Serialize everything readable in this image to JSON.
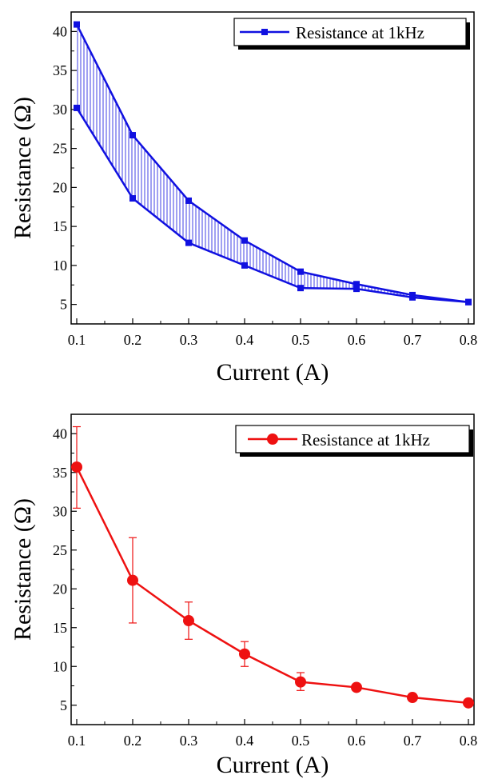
{
  "chart_data": [
    {
      "type": "line",
      "xlabel": "Current (A)",
      "ylabel": "Resistance (Ω)",
      "xlim": [
        0.09,
        0.81
      ],
      "ylim": [
        2.5,
        42.5
      ],
      "xticks": [
        0.1,
        0.2,
        0.3,
        0.4,
        0.5,
        0.6,
        0.7,
        0.8
      ],
      "yticks": [
        5,
        10,
        15,
        20,
        25,
        30,
        35,
        40
      ],
      "x": [
        0.1,
        0.2,
        0.3,
        0.4,
        0.5,
        0.6,
        0.7,
        0.8
      ],
      "series": [
        {
          "name": "Resistance at 1kHz",
          "role": "upper",
          "values": [
            40.9,
            26.7,
            18.3,
            13.2,
            9.2,
            7.6,
            6.2,
            5.3
          ]
        },
        {
          "name": "",
          "role": "lower",
          "values": [
            30.2,
            18.6,
            12.9,
            10.0,
            7.1,
            7.0,
            5.9,
            5.3
          ]
        }
      ],
      "band_fill": "vertical-hatch",
      "marker": "square",
      "color": "#1010e0",
      "legend": {
        "label": "Resistance at 1kHz",
        "position": "top-right"
      },
      "grid": false
    },
    {
      "type": "line",
      "xlabel": "Current (A)",
      "ylabel": "Resistance (Ω)",
      "xlim": [
        0.09,
        0.81
      ],
      "ylim": [
        2.5,
        42.5
      ],
      "xticks": [
        0.1,
        0.2,
        0.3,
        0.4,
        0.5,
        0.6,
        0.7,
        0.8
      ],
      "yticks": [
        5,
        10,
        15,
        20,
        25,
        30,
        35,
        40
      ],
      "x": [
        0.1,
        0.2,
        0.3,
        0.4,
        0.5,
        0.6,
        0.7,
        0.8
      ],
      "series": [
        {
          "name": "Resistance at 1kHz",
          "values": [
            35.7,
            21.1,
            15.9,
            11.6,
            8.0,
            7.3,
            6.0,
            5.3
          ],
          "error_low": [
            30.4,
            15.6,
            13.5,
            10.0,
            6.9,
            7.3,
            6.0,
            5.3
          ],
          "error_high": [
            40.9,
            26.6,
            18.3,
            13.2,
            9.2,
            7.3,
            6.0,
            5.3
          ]
        }
      ],
      "marker": "circle",
      "color": "#ee1111",
      "legend": {
        "label": "Resistance at 1kHz",
        "position": "top-right"
      },
      "grid": false
    }
  ]
}
